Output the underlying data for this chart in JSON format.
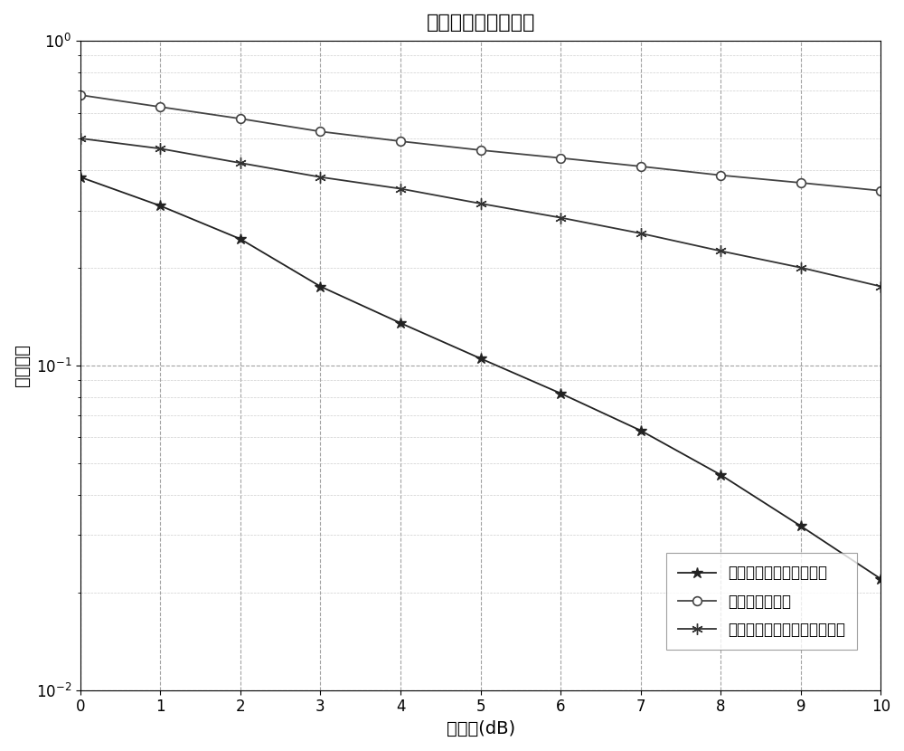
{
  "title": "不同方式的误比特率",
  "xlabel": "信噪比(dB)",
  "ylabel": "误比特率",
  "xlim": [
    0,
    10
  ],
  "ylim_log": [
    -2,
    0
  ],
  "x": [
    0,
    1,
    2,
    3,
    4,
    5,
    6,
    7,
    8,
    9,
    10
  ],
  "series": [
    {
      "label": "中继使用空时编码的情况",
      "marker": "asterisk",
      "color": "#222222",
      "y": [
        0.38,
        0.31,
        0.245,
        0.175,
        0.135,
        0.105,
        0.082,
        0.063,
        0.046,
        0.032,
        0.022
      ]
    },
    {
      "label": "无中继重传情况",
      "marker": "circle",
      "color": "#444444",
      "y": [
        0.68,
        0.625,
        0.575,
        0.525,
        0.49,
        0.46,
        0.435,
        0.41,
        0.385,
        0.365,
        0.345
      ]
    },
    {
      "label": "中继不使用空时编码重传情况",
      "marker": "star6",
      "color": "#333333",
      "y": [
        0.5,
        0.465,
        0.42,
        0.38,
        0.35,
        0.315,
        0.285,
        0.255,
        0.225,
        0.2,
        0.175
      ]
    }
  ],
  "background_color": "#ffffff",
  "grid_major_color": "#999999",
  "grid_minor_color": "#bbbbbb",
  "title_fontsize": 16,
  "label_fontsize": 14,
  "tick_fontsize": 12,
  "legend_fontsize": 12,
  "linewidth": 1.3,
  "markersize_circle": 7,
  "markersize_star": 9,
  "markersize_asterisk": 9
}
